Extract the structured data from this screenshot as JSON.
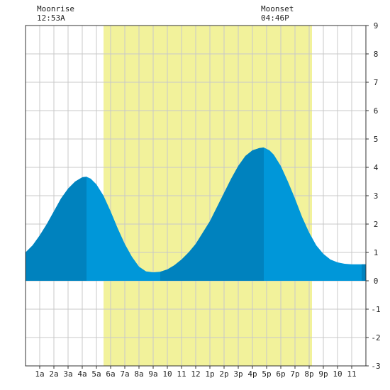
{
  "header": {
    "moonrise_label": "Moonrise",
    "moonrise_time": "12:53A",
    "moonset_label": "Moonset",
    "moonset_time": "04:46P"
  },
  "chart_data": {
    "type": "area",
    "title": "",
    "xlabel": "",
    "ylabel": "",
    "xlim": [
      0,
      24
    ],
    "ylim": [
      -3,
      9
    ],
    "y_ticks": [
      -3,
      -2,
      -1,
      0,
      1,
      2,
      3,
      4,
      5,
      6,
      7,
      8,
      9
    ],
    "x_ticks": [
      {
        "x": 1,
        "label": "1a"
      },
      {
        "x": 2,
        "label": "2a"
      },
      {
        "x": 3,
        "label": "3a"
      },
      {
        "x": 4,
        "label": "4a"
      },
      {
        "x": 5,
        "label": "5a"
      },
      {
        "x": 6,
        "label": "6a"
      },
      {
        "x": 7,
        "label": "7a"
      },
      {
        "x": 8,
        "label": "8a"
      },
      {
        "x": 9,
        "label": "9a"
      },
      {
        "x": 10,
        "label": "10"
      },
      {
        "x": 11,
        "label": "11"
      },
      {
        "x": 12,
        "label": "12"
      },
      {
        "x": 13,
        "label": "1p"
      },
      {
        "x": 14,
        "label": "2p"
      },
      {
        "x": 15,
        "label": "3p"
      },
      {
        "x": 16,
        "label": "4p"
      },
      {
        "x": 17,
        "label": "5p"
      },
      {
        "x": 18,
        "label": "6p"
      },
      {
        "x": 19,
        "label": "7p"
      },
      {
        "x": 20,
        "label": "8p"
      },
      {
        "x": 21,
        "label": "9p"
      },
      {
        "x": 22,
        "label": "10"
      },
      {
        "x": 23,
        "label": "11"
      }
    ],
    "grid": true,
    "daylight_hours": [
      5.5,
      20.2
    ],
    "rising_bands": [
      [
        0,
        4.3
      ],
      [
        9.5,
        16.8
      ],
      [
        23.7,
        24
      ]
    ],
    "tide_series": {
      "x": [
        0,
        0.5,
        1,
        1.5,
        2,
        2.5,
        3,
        3.5,
        4,
        4.3,
        4.6,
        5,
        5.5,
        6,
        6.5,
        7,
        7.5,
        8,
        8.5,
        9,
        9.5,
        10,
        10.5,
        11,
        11.5,
        12,
        12.5,
        13,
        13.5,
        14,
        14.5,
        15,
        15.5,
        16,
        16.5,
        16.8,
        17.2,
        17.5,
        18,
        18.5,
        19,
        19.5,
        20,
        20.5,
        21,
        21.5,
        22,
        22.5,
        23,
        23.5,
        24
      ],
      "y": [
        1.0,
        1.25,
        1.6,
        2.0,
        2.45,
        2.9,
        3.25,
        3.5,
        3.65,
        3.67,
        3.6,
        3.4,
        3.0,
        2.45,
        1.85,
        1.3,
        0.85,
        0.5,
        0.33,
        0.3,
        0.32,
        0.4,
        0.55,
        0.75,
        1.0,
        1.3,
        1.7,
        2.1,
        2.6,
        3.1,
        3.6,
        4.05,
        4.4,
        4.6,
        4.68,
        4.7,
        4.6,
        4.45,
        4.05,
        3.5,
        2.9,
        2.25,
        1.7,
        1.25,
        0.95,
        0.75,
        0.65,
        0.6,
        0.58,
        0.58,
        0.58
      ]
    },
    "colors": {
      "daylight": "#f2f29b",
      "water": "#0097d9",
      "water_rising": "#0082be",
      "grid": "#c8c8c8",
      "axis": "#333333"
    }
  }
}
